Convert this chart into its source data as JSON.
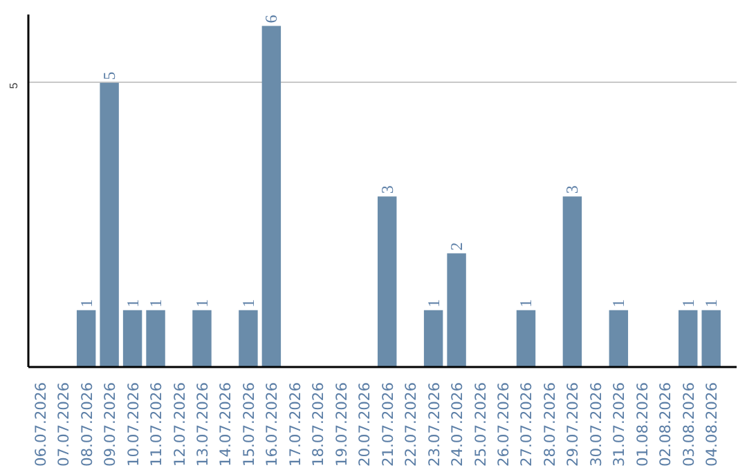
{
  "chart_data": {
    "type": "bar",
    "categories": [
      "06.07.2026",
      "07.07.2026",
      "08.07.2026",
      "09.07.2026",
      "10.07.2026",
      "11.07.2026",
      "12.07.2026",
      "13.07.2026",
      "14.07.2026",
      "15.07.2026",
      "16.07.2026",
      "17.07.2026",
      "18.07.2026",
      "19.07.2026",
      "20.07.2026",
      "21.07.2026",
      "22.07.2026",
      "23.07.2026",
      "24.07.2026",
      "25.07.2026",
      "26.07.2026",
      "27.07.2026",
      "28.07.2026",
      "29.07.2026",
      "30.07.2026",
      "31.07.2026",
      "01.08.2026",
      "02.08.2026",
      "03.08.2026",
      "04.08.2026"
    ],
    "values": [
      0,
      0,
      1,
      5,
      1,
      1,
      0,
      1,
      0,
      1,
      6,
      0,
      0,
      0,
      0,
      3,
      0,
      1,
      2,
      0,
      0,
      1,
      0,
      3,
      0,
      1,
      0,
      0,
      1,
      1
    ],
    "value_labels": [
      null,
      null,
      "1",
      "5",
      "1",
      "1",
      null,
      "1",
      null,
      "1",
      "6",
      null,
      null,
      null,
      null,
      "3",
      null,
      "1",
      "2",
      null,
      null,
      "1",
      null,
      "3",
      null,
      "1",
      null,
      null,
      "1",
      "1"
    ],
    "color": "#6a8caa",
    "ylim": [
      0,
      6.2
    ],
    "yticks": [
      5
    ],
    "grid": "y"
  }
}
